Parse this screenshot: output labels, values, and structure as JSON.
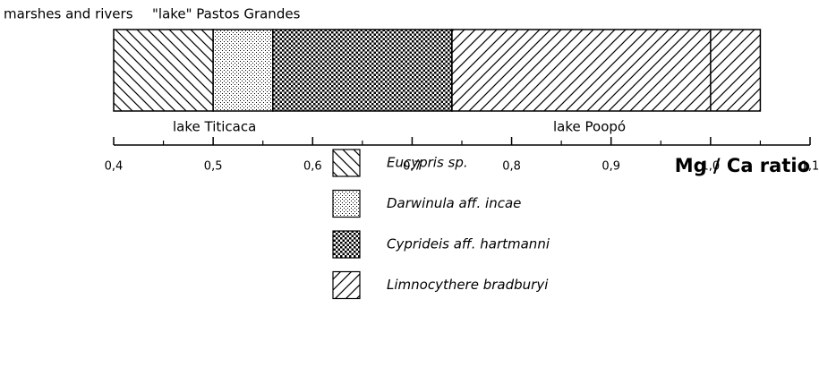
{
  "chart_data": {
    "type": "range",
    "xlabel": "Mg / Ca ratio",
    "xlim": [
      0.4,
      1.1
    ],
    "xticks": [
      {
        "value": 0.4,
        "label": "0,4"
      },
      {
        "value": 0.5,
        "label": "0,5"
      },
      {
        "value": 0.6,
        "label": "0,6"
      },
      {
        "value": 0.7,
        "label": "0,7"
      },
      {
        "value": 0.8,
        "label": "0,8"
      },
      {
        "value": 0.9,
        "label": "0,9"
      },
      {
        "value": 1.0,
        "label": "1,0"
      },
      {
        "value": 1.1,
        "label": "1,1"
      }
    ],
    "xminorticks": [
      0.45,
      0.55,
      0.65,
      0.75,
      0.85,
      0.95,
      1.05
    ],
    "series": [
      {
        "name": "Eucypris sp.",
        "pattern": "back-diagonal",
        "values": [
          0.4,
          0.5
        ]
      },
      {
        "name": "Darwinula aff. incae",
        "pattern": "fine-dots",
        "values": [
          0.5,
          0.56
        ]
      },
      {
        "name": "Cyprideis aff. hartmanni",
        "pattern": "coarse-dots",
        "values": [
          0.56,
          0.74
        ]
      },
      {
        "name": "Limnocythere bradburyi",
        "pattern": "diagonal",
        "values": [
          0.74,
          1.05
        ]
      }
    ],
    "annotations": [
      {
        "text": "marshes and rivers"
      },
      {
        "text": "\"lake\" Pastos Grandes"
      },
      {
        "text": "lake Titicaca"
      },
      {
        "text": "lake Poopó",
        "range": [
          0.74,
          1.0
        ]
      }
    ]
  }
}
